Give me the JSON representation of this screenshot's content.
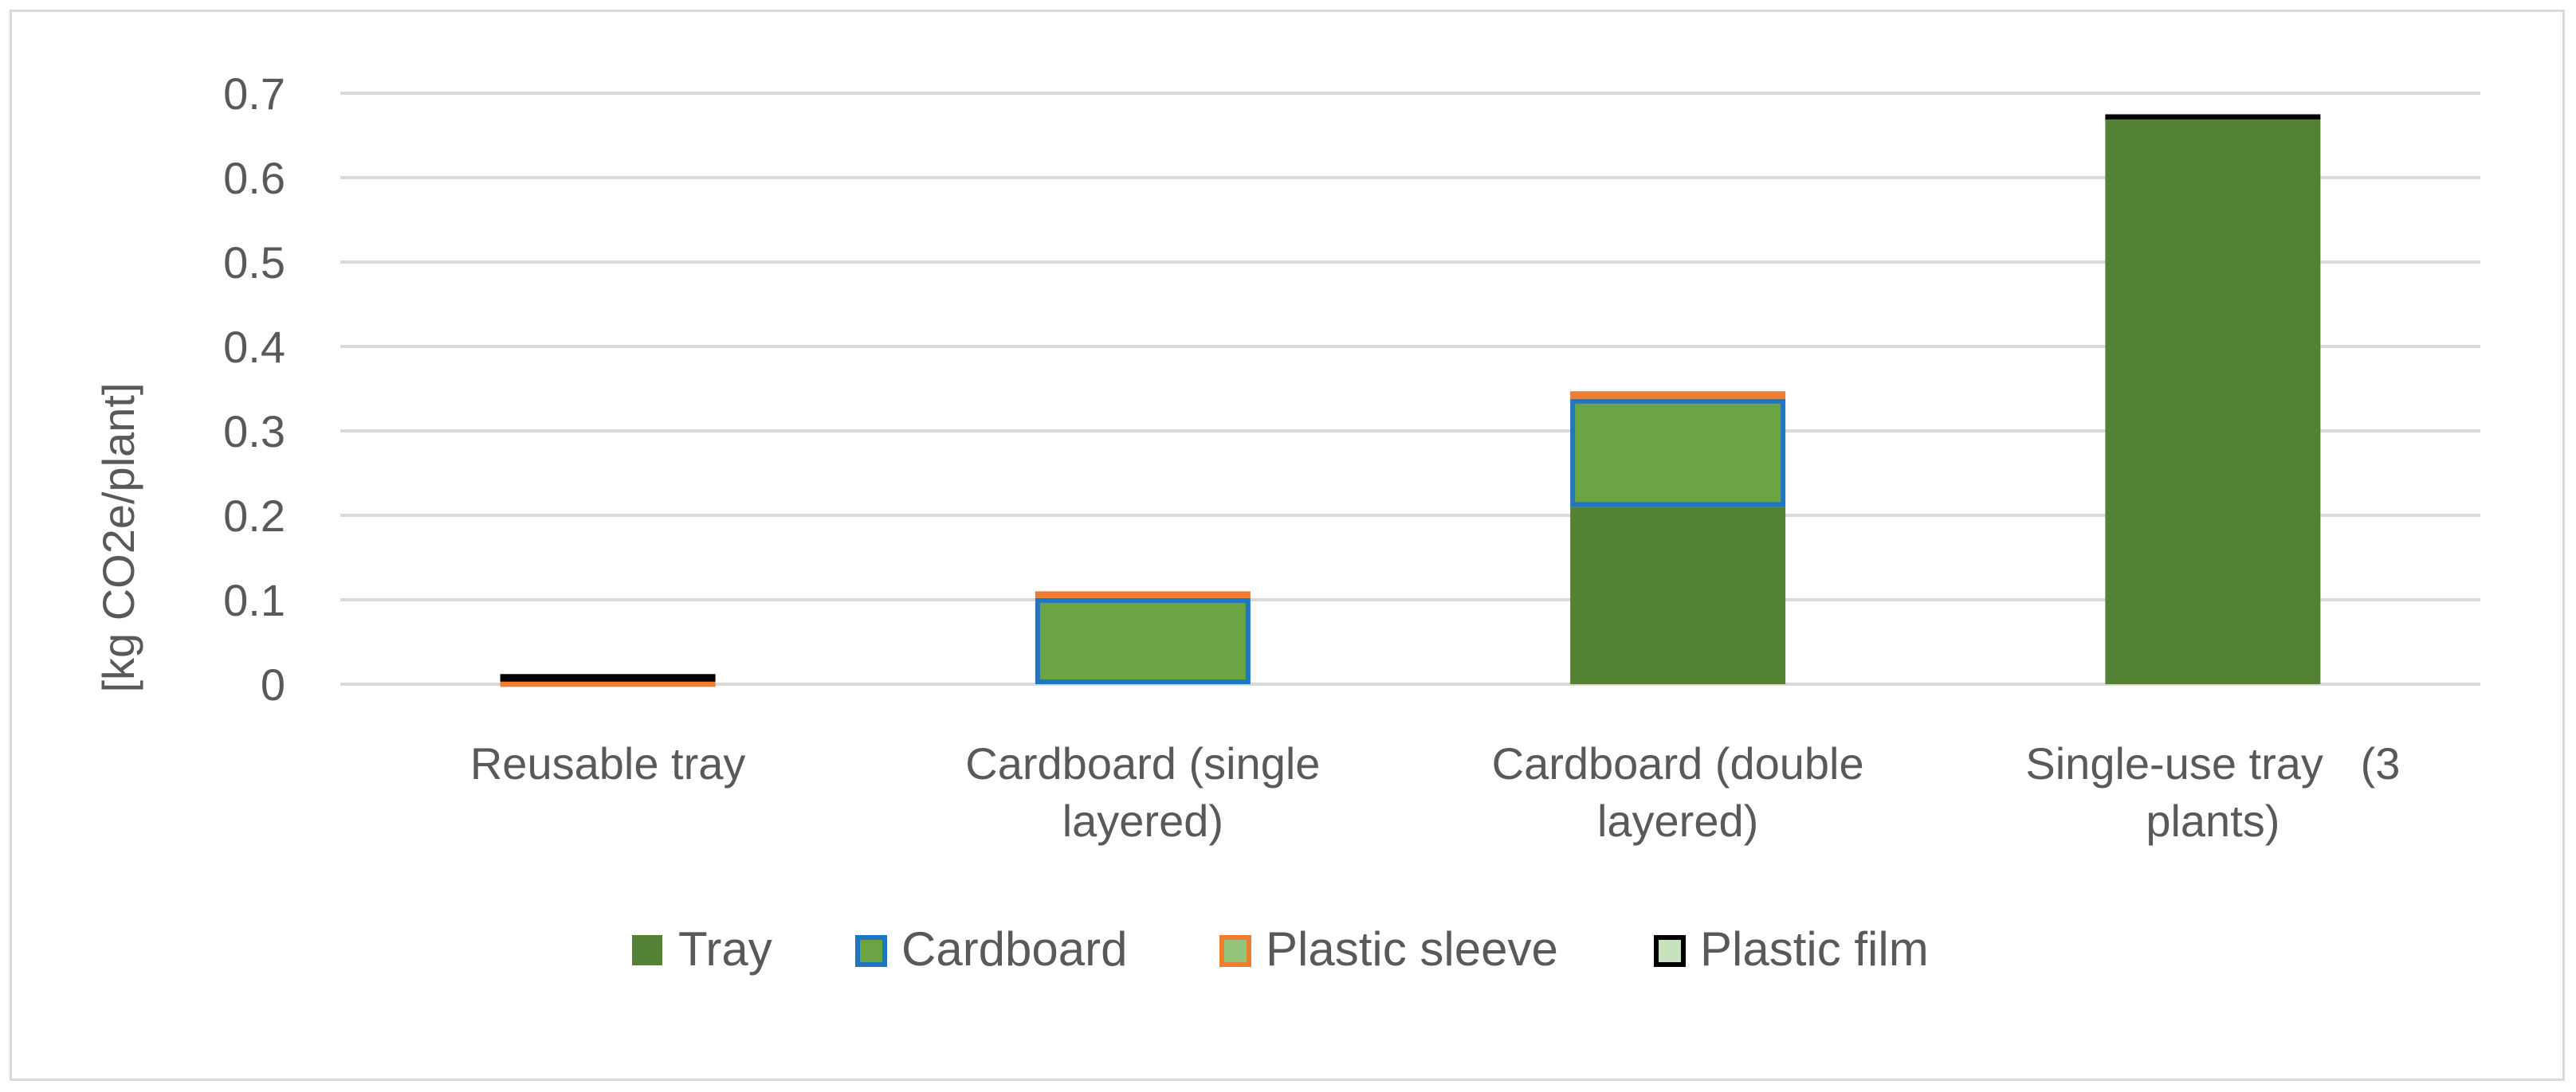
{
  "chart_data": {
    "type": "bar",
    "stacked": true,
    "title": "",
    "xlabel": "",
    "ylabel": "[kg CO2e/plant]",
    "ylim": [
      0,
      0.7
    ],
    "yticks": [
      0,
      0.1,
      0.2,
      0.3,
      0.4,
      0.5,
      0.6,
      0.7
    ],
    "ytick_labels": [
      "0",
      "0.1",
      "0.2",
      "0.3",
      "0.4",
      "0.5",
      "0.6",
      "0.7"
    ],
    "grid": true,
    "legend_position": "bottom",
    "categories": [
      [
        "Reusable tray"
      ],
      [
        "Cardboard (single",
        "layered)"
      ],
      [
        "Cardboard (double",
        "layered)"
      ],
      [
        "Single-use tray   (3",
        "plants)"
      ]
    ],
    "series": [
      {
        "name": "Tray",
        "fill": "#548235",
        "stroke": "#548235",
        "values": [
          0.0,
          0.0,
          0.21,
          0.67
        ]
      },
      {
        "name": "Cardboard",
        "fill": "#6aa443",
        "stroke": "#1f77c4",
        "values": [
          0.0,
          0.102,
          0.128,
          0.0
        ]
      },
      {
        "name": "Plastic sleeve",
        "fill": "#92c47a",
        "stroke": "#ed7d31",
        "values": [
          0.003,
          0.008,
          0.009,
          0.0
        ]
      },
      {
        "name": "Plastic film",
        "fill": "#c8e2bd",
        "stroke": "#000000",
        "values": [
          0.009,
          0.0,
          0.0,
          0.005
        ]
      }
    ]
  }
}
